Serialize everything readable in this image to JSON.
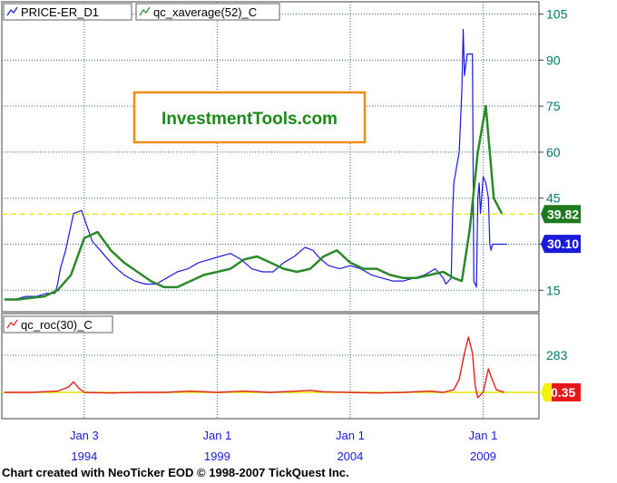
{
  "credit": "Chart created with NeoTicker EOD © 1998-2007 TickQuest Inc.",
  "watermark": "InvestmentTools.com",
  "colors": {
    "plot_bg": "#ffffff",
    "outer_bg": "#ffffff",
    "grid": "#2f6f6f",
    "axis_text": "#007a6e",
    "price": "#1a1adb",
    "average": "#2a8a2a",
    "roc": "#e32020",
    "hline": "#e6e600",
    "watermark_border": "#f28a16",
    "watermark_text": "#1a8a1a",
    "badge_avg": "#1f7a1f",
    "badge_price": "#1a1adb",
    "badge_roc": "#e31818",
    "badge_roc_marker": "#f2f20a"
  },
  "chart_data": [
    {
      "type": "line",
      "legend": [
        "PRICE-ER_D1",
        "qc_xaverage(52)_C"
      ],
      "y_ticks": [
        15,
        30,
        45,
        60,
        75,
        90,
        105
      ],
      "ylim": [
        8,
        109
      ],
      "x_domain": [
        1990.9,
        2011.1
      ],
      "series": [
        {
          "name": "PRICE-ER_D1",
          "x": [
            1991.0,
            1991.4,
            1991.8,
            1992.2,
            1992.6,
            1992.9,
            1993.0,
            1993.1,
            1993.3,
            1993.6,
            1993.9,
            1994.3,
            1994.7,
            1995.1,
            1995.5,
            1995.9,
            1996.3,
            1996.7,
            1997.1,
            1997.5,
            1997.9,
            1998.3,
            1998.7,
            1999.1,
            1999.5,
            1999.9,
            2000.3,
            2000.7,
            2001.1,
            2001.5,
            2001.9,
            2002.3,
            2002.6,
            2002.9,
            2003.2,
            2003.6,
            2004.0,
            2004.4,
            2004.8,
            2005.2,
            2005.6,
            2006.0,
            2006.4,
            2006.8,
            2007.2,
            2007.5,
            2007.6,
            2007.7,
            2007.8,
            2007.85,
            2007.9,
            2008.0,
            2008.1,
            2008.2,
            2008.25,
            2008.3,
            2008.4,
            2008.5,
            2008.6,
            2008.65,
            2008.7,
            2008.75,
            2008.8,
            2008.85,
            2008.9,
            2009.0,
            2009.1,
            2009.2,
            2009.25,
            2009.3,
            2009.35,
            2009.4,
            2009.5,
            2009.6,
            2009.7,
            2009.8,
            2009.9
          ],
          "values": [
            12,
            12,
            13,
            13,
            14,
            14,
            17,
            22,
            28,
            40,
            41,
            31,
            27,
            23,
            20,
            18,
            17,
            17,
            19,
            21,
            22,
            24,
            25,
            26,
            27,
            25,
            22,
            21,
            21,
            24,
            26,
            29,
            28,
            25,
            23,
            22,
            23,
            22,
            20,
            19,
            18,
            18,
            19,
            20,
            22,
            19,
            17,
            18,
            19,
            40,
            50,
            55,
            60,
            80,
            100,
            85,
            92,
            92,
            92,
            18,
            17,
            16,
            45,
            50,
            40,
            52,
            50,
            45,
            30,
            28,
            30,
            30,
            30,
            30,
            30,
            30,
            30
          ]
        },
        {
          "name": "qc_xaverage(52)_C",
          "x": [
            1991.0,
            1991.5,
            1992.0,
            1992.5,
            1993.0,
            1993.5,
            1994.0,
            1994.5,
            1995.0,
            1995.5,
            1996.0,
            1996.5,
            1997.0,
            1997.5,
            1998.0,
            1998.5,
            1999.0,
            1999.5,
            2000.0,
            2000.5,
            2001.0,
            2001.5,
            2002.0,
            2002.5,
            2003.0,
            2003.5,
            2004.0,
            2004.5,
            2005.0,
            2005.5,
            2006.0,
            2006.5,
            2007.0,
            2007.5,
            2007.9,
            2008.2,
            2008.5,
            2008.8,
            2009.1,
            2009.4,
            2009.7
          ],
          "values": [
            12,
            12,
            12.5,
            13,
            15,
            20,
            32,
            34,
            28,
            24,
            21,
            18,
            16,
            16,
            18,
            20,
            21,
            22,
            25,
            26,
            24,
            22,
            21,
            22,
            26,
            28,
            24,
            22,
            22,
            20,
            19,
            19,
            20,
            21,
            19,
            18,
            35,
            60,
            75,
            45,
            40
          ]
        }
      ]
    },
    {
      "type": "line",
      "legend": [
        "qc_roc(30)_C"
      ],
      "y_ticks": [
        283
      ],
      "ylim": [
        -200,
        600
      ],
      "x_domain": [
        1990.9,
        2011.1
      ],
      "series": [
        {
          "name": "qc_roc(30)_C",
          "x": [
            1991.0,
            1992.0,
            1993.0,
            1993.4,
            1993.6,
            1993.8,
            1994.0,
            1995.0,
            1996.0,
            1997.0,
            1998.0,
            1999.0,
            2000.0,
            2001.0,
            2002.0,
            2002.5,
            2003.0,
            2004.0,
            2005.0,
            2006.0,
            2007.0,
            2007.5,
            2007.9,
            2008.1,
            2008.3,
            2008.45,
            2008.6,
            2008.7,
            2008.8,
            2009.0,
            2009.2,
            2009.3,
            2009.5,
            2009.8
          ],
          "values": [
            0,
            0,
            10,
            40,
            80,
            30,
            0,
            -5,
            0,
            0,
            10,
            0,
            10,
            0,
            10,
            15,
            5,
            0,
            -5,
            0,
            10,
            0,
            20,
            100,
            300,
            420,
            300,
            50,
            -40,
            0,
            180,
            120,
            20,
            0
          ]
        }
      ]
    }
  ],
  "x_ticks": [
    {
      "month": "Jan 3",
      "year": "1994",
      "x": 1994.0
    },
    {
      "month": "Jan 1",
      "year": "1999",
      "x": 1999.0
    },
    {
      "month": "Jan 1",
      "year": "2004",
      "x": 2004.0
    },
    {
      "month": "Jan 1",
      "year": "2009",
      "x": 2009.0
    }
  ],
  "price_panel": {
    "hline_value": 39.82,
    "badges": [
      {
        "label": "39.82",
        "value": 39.82,
        "color": "#1f7a1f"
      },
      {
        "label": "30.10",
        "value": 30.1,
        "color": "#1a1adb"
      }
    ]
  },
  "roc_panel": {
    "hline_value": 0,
    "badge": {
      "label": "0.35",
      "value": 0.35,
      "color": "#e31818"
    }
  }
}
